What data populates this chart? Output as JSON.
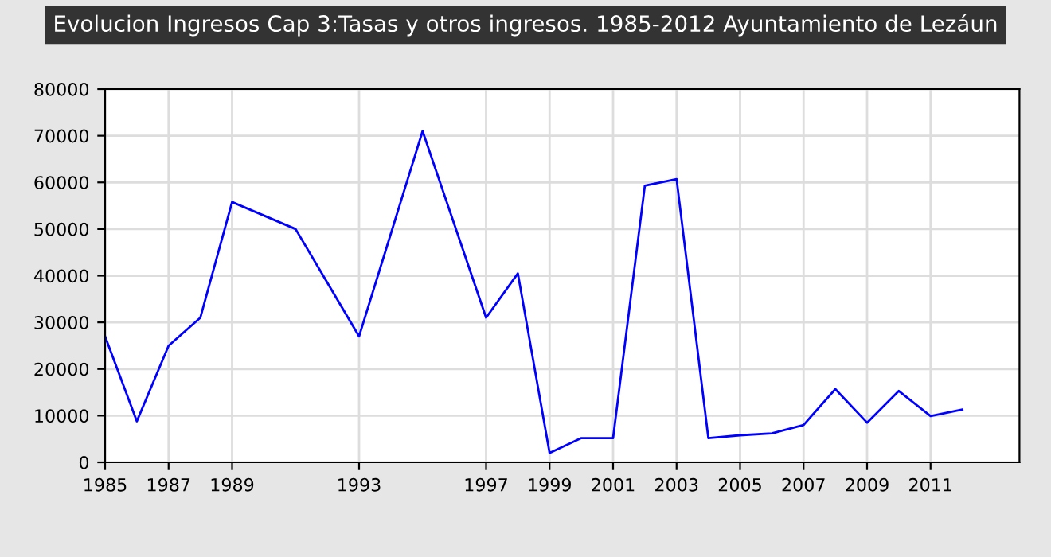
{
  "chart_data": {
    "type": "line",
    "title": "Evolucion Ingresos Cap 3:Tasas y otros ingresos. 1985-2012 Ayuntamiento de Lezáun",
    "x": [
      1985,
      1986,
      1987,
      1988,
      1989,
      1990,
      1991,
      1992,
      1993,
      1994,
      1995,
      1996,
      1997,
      1998,
      1999,
      2000,
      2001,
      2002,
      2003,
      2004,
      2005,
      2006,
      2007,
      2008,
      2009,
      2010,
      2011,
      2012
    ],
    "series": [
      {
        "color": "#0000ff",
        "values": [
          27000,
          8800,
          25000,
          31000,
          55800,
          52900,
          50000,
          38500,
          27000,
          49000,
          71000,
          51000,
          31000,
          40500,
          2000,
          5200,
          5200,
          59300,
          60700,
          5200,
          5800,
          6200,
          8000,
          15700,
          8500,
          15300,
          9900,
          11300
        ]
      }
    ],
    "xlim": [
      1985,
      2013.8
    ],
    "xticks": [
      1985,
      1987,
      1989,
      1993,
      1997,
      1999,
      2001,
      2003,
      2005,
      2007,
      2009,
      2011
    ],
    "ylim": [
      0,
      80000
    ],
    "yticks": [
      0,
      10000,
      20000,
      30000,
      40000,
      50000,
      60000,
      70000,
      80000
    ],
    "grid": true,
    "line_style": "solid",
    "marker": "none"
  }
}
